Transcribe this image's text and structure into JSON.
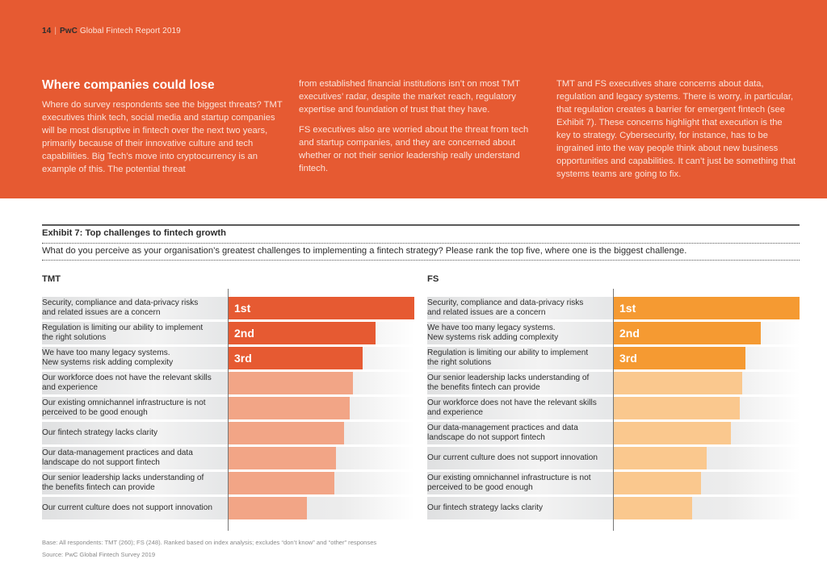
{
  "page_header": {
    "page_number": "14",
    "separator": "|",
    "brand": "PwC",
    "report_title": "Global Fintech Report 2019"
  },
  "article": {
    "heading": "Where companies could lose",
    "column1": "Where do survey respondents see the biggest threats? TMT executives think tech, social media and startup companies will be most disruptive in fintech over the next two years, primarily because of their innovative culture and tech capabilities. Big Tech’s move into cryptocurrency is an example of this. The potential threat",
    "column2_p1": "from established financial institutions isn’t on most TMT executives’ radar, despite the market reach, regulatory expertise and foundation of trust that they have.",
    "column2_p2": "FS executives also are worried about the threat from tech and startup companies, and they are concerned about whether or not their senior leadership really understand fintech.",
    "column3": "TMT and FS executives share concerns about data, regulation and legacy systems. There is worry, in particular, that regulation creates a barrier for emergent fintech (see Exhibit 7). These concerns highlight that execution is the key to strategy. Cybersecurity, for instance, has to be ingrained into the way people think about new business opportunities and capabilities. It can’t just be something that systems teams are going to fix."
  },
  "colors": {
    "banner": "#e65a32",
    "tmt_top3": "#e65a32",
    "tmt_rest": "#f2a586",
    "fs_top3": "#f59a32",
    "fs_rest": "#fac88e"
  },
  "chart_data": {
    "type": "bar",
    "orientation": "horizontal",
    "title": "Exhibit 7: Top challenges to fintech growth",
    "subtitle": "What do you perceive as your organisation’s greatest challenges to implementing a fintech strategy? Please rank the top five, where one is the biggest challenge.",
    "value_note": "Values are relative index estimates read from bar lengths (1st = 100); no axis ticks shown",
    "xlim": [
      0,
      100
    ],
    "grid": false,
    "legend": "none",
    "panels": [
      {
        "name": "TMT",
        "categories": [
          "Security, compliance and data-privacy risks and related issues are a concern",
          "Regulation is limiting our ability to implement the right solutions",
          "We have too many legacy systems. New systems risk adding complexity",
          "Our workforce does not have the relevant skills and experience",
          "Our existing omnichannel infrastructure is not perceived to be good enough",
          "Our fintech strategy lacks clarity",
          "Our data-management practices and data landscape do not support fintech",
          "Our senior leadership lacks understanding of the benefits fintech can provide",
          "Our current culture does not support innovation"
        ],
        "labels_html": [
          "Security, compliance and data-privacy risks<br>and related issues are a concern",
          "Regulation is limiting our ability to implement<br>the right solutions",
          "We have too many legacy systems.<br>New systems risk adding complexity",
          "Our workforce does not have the relevant skills<br>and experience",
          "Our existing omnichannel infrastructure is not<br>perceived to be good enough",
          "Our fintech strategy lacks clarity",
          "Our data-management practices and data<br>landscape do not support fintech",
          "Our senior leadership lacks understanding of<br>the benefits fintech can provide",
          "Our current culture does not support innovation"
        ],
        "values": [
          100,
          79,
          72,
          67,
          65,
          62,
          58,
          57,
          42
        ],
        "rank_labels": [
          "1st",
          "2nd",
          "3rd",
          "",
          "",
          "",
          "",
          "",
          ""
        ]
      },
      {
        "name": "FS",
        "categories": [
          "Security, compliance and data-privacy risks and related issues are a concern",
          "We have too many legacy systems. New systems risk adding complexity",
          "Regulation is limiting our ability to implement the right solutions",
          "Our senior leadership lacks understanding of the benefits fintech can provide",
          "Our workforce does not have the relevant skills and experience",
          "Our data-management practices and data landscape do not support fintech",
          "Our current culture does not support innovation",
          "Our existing omnichannel infrastructure is not perceived to be good enough",
          "Our fintech strategy lacks clarity"
        ],
        "labels_html": [
          "Security, compliance and data-privacy risks<br>and related issues are a concern",
          "We have too many legacy systems.<br>New systems risk adding complexity",
          "Regulation is limiting our ability to implement<br>the right solutions",
          "Our senior leadership lacks understanding of<br>the benefits fintech can provide",
          "Our workforce does not have the relevant skills<br>and experience",
          "Our data-management practices and data<br>landscape do not support fintech",
          "Our current culture does not support innovation",
          "Our existing omnichannel infrastructure is not<br>perceived to be good enough",
          "Our fintech strategy lacks clarity"
        ],
        "values": [
          100,
          79,
          71,
          69,
          68,
          63,
          50,
          47,
          42
        ],
        "rank_labels": [
          "1st",
          "2nd",
          "3rd",
          "",
          "",
          "",
          "",
          "",
          ""
        ]
      }
    ]
  },
  "footnotes": {
    "base": "Base: All  respondents: TMT (260); FS (248). Ranked based on index analysis; excludes “don’t know” and “other” responses",
    "source": "Source: PwC Global Fintech Survey 2019"
  }
}
